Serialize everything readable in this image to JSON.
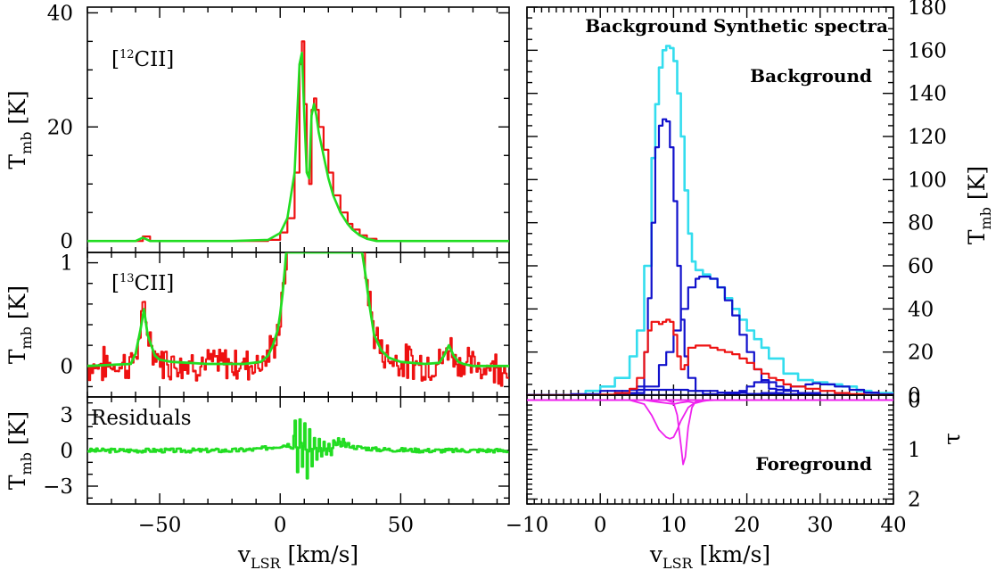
{
  "chart_data": [
    {
      "type": "line",
      "panel": "top-left",
      "annotation": "[12CII]",
      "annotation_main": "[",
      "annotation_sup": "12",
      "annotation_rest": "CII]",
      "xlim": [
        -80,
        95
      ],
      "ylim": [
        -2,
        41
      ],
      "yticks": [
        0,
        20,
        40
      ],
      "ylabel": "T",
      "ylabel_sub": "mb",
      "ylabel_unit": "[K]",
      "series": [
        {
          "name": "observed",
          "color": "#ee1111",
          "x": [
            -80,
            -60,
            -57,
            -54,
            -40,
            -20,
            -5,
            0,
            3,
            6,
            8,
            9,
            10,
            11,
            12,
            13,
            14,
            15,
            16,
            18,
            20,
            22,
            25,
            28,
            30,
            33,
            36,
            40,
            50,
            60,
            80,
            95
          ],
          "y": [
            0,
            0,
            0.8,
            0,
            0,
            0,
            0.2,
            1.5,
            4,
            12,
            31,
            35,
            24,
            12,
            10,
            23,
            25,
            23,
            20,
            16,
            12,
            8,
            5,
            3,
            2,
            1,
            0.4,
            0,
            0,
            0,
            0,
            0
          ]
        },
        {
          "name": "fit",
          "color": "#22dd22",
          "x": [
            -80,
            -60,
            -57,
            -54,
            -40,
            -20,
            -5,
            0,
            3,
            6,
            8,
            9,
            10,
            11,
            12,
            13,
            14,
            15,
            16,
            18,
            20,
            22,
            25,
            28,
            30,
            33,
            36,
            40,
            50,
            60,
            80,
            95
          ],
          "y": [
            0,
            0,
            0.6,
            0,
            0,
            0,
            0.2,
            1.4,
            4,
            12,
            31,
            33,
            22,
            12,
            11,
            22,
            24,
            22,
            19,
            15,
            11,
            8,
            5,
            3,
            2,
            1,
            0.4,
            0,
            0,
            0,
            0,
            0
          ]
        }
      ]
    },
    {
      "type": "line",
      "panel": "middle-left",
      "annotation": "[13CII]",
      "annotation_main": "[",
      "annotation_sup": "13",
      "annotation_rest": "CII]",
      "xlim": [
        -80,
        95
      ],
      "ylim": [
        -0.3,
        1.1
      ],
      "yticks": [
        0,
        1
      ],
      "ylabel": "T",
      "ylabel_sub": "mb",
      "ylabel_unit": "[K]",
      "series": [
        {
          "name": "fit",
          "color": "#22dd22",
          "x": [
            -80,
            -62,
            -60,
            -58,
            -56.5,
            -55,
            -52,
            -50,
            -45,
            -30,
            -15,
            -8,
            -5,
            -3,
            -1,
            0,
            1,
            2,
            2.5,
            34,
            35,
            37,
            39,
            42,
            45,
            50,
            60,
            66,
            68,
            70,
            72,
            74,
            76,
            80,
            95
          ],
          "y": [
            0,
            0.02,
            0.12,
            0.35,
            0.55,
            0.3,
            0.1,
            0.06,
            0.04,
            0.02,
            0.02,
            0.04,
            0.1,
            0.2,
            0.35,
            0.5,
            0.7,
            0.95,
            1.1,
            1.1,
            0.95,
            0.6,
            0.3,
            0.15,
            0.08,
            0.04,
            0.02,
            0.03,
            0.1,
            0.2,
            0.1,
            0.04,
            0.02,
            0,
            0
          ]
        }
      ]
    },
    {
      "type": "line",
      "panel": "bottom-left",
      "annotation": "Residuals",
      "xlim": [
        -80,
        95
      ],
      "ylim": [
        -4.5,
        4.5
      ],
      "yticks": [
        -3,
        0,
        3
      ],
      "xticks": [
        -50,
        0,
        50
      ],
      "xlabel": "v",
      "xlabel_sub": "LSR",
      "xlabel_unit": "[km/s]",
      "ylabel": "T",
      "ylabel_sub": "mb",
      "ylabel_unit": "[K]",
      "series": [
        {
          "name": "residuals",
          "color": "#22dd22",
          "x": [
            -80,
            -60,
            -40,
            -20,
            -10,
            0,
            3,
            5,
            6,
            7,
            8,
            9,
            10,
            11,
            12,
            13,
            14,
            15,
            16,
            17,
            18,
            19,
            20,
            21,
            22,
            23,
            24,
            25,
            26,
            27,
            28,
            30,
            35,
            40,
            60,
            80,
            95
          ],
          "y": [
            0,
            0,
            0,
            0,
            0.1,
            0.4,
            0.5,
            0.3,
            2.5,
            -1.8,
            2.6,
            -1.5,
            2.3,
            -2.2,
            1.8,
            -1.3,
            1.2,
            -0.8,
            0.9,
            -0.6,
            0.7,
            -0.4,
            0.5,
            -0.5,
            0.8,
            0.3,
            1,
            0.2,
            0.8,
            0.4,
            0.5,
            0.3,
            0.2,
            0.1,
            0,
            0,
            0
          ]
        }
      ]
    },
    {
      "type": "line",
      "panel": "top-right",
      "title": "Background Synthetic spectra",
      "annotation": "Background",
      "xlim": [
        -10,
        40
      ],
      "ylim": [
        0,
        180
      ],
      "yticks": [
        0,
        20,
        40,
        60,
        80,
        100,
        120,
        140,
        160,
        180
      ],
      "ylabel": "T",
      "ylabel_sub": "mb",
      "ylabel_unit": "[K]",
      "series": [
        {
          "name": "synthetic total",
          "color": "#33ddee",
          "x": [
            -10,
            -2,
            0,
            2,
            4,
            5,
            6,
            7,
            7.5,
            8,
            8.5,
            9,
            9.5,
            10,
            10.5,
            11,
            11.5,
            12,
            12.5,
            13,
            14,
            15,
            16,
            17,
            18,
            19,
            20,
            21,
            22,
            23,
            25,
            27,
            29,
            31,
            33,
            35,
            37,
            40
          ],
          "y": [
            0,
            2,
            4,
            8,
            18,
            30,
            60,
            110,
            135,
            152,
            160,
            162,
            161,
            155,
            140,
            120,
            95,
            75,
            62,
            58,
            56,
            54,
            50,
            45,
            40,
            35,
            30,
            26,
            22,
            17,
            10,
            7,
            6,
            5,
            4,
            2,
            1,
            0
          ]
        },
        {
          "name": "background comp 1",
          "color": "#1111cc",
          "x": [
            -10,
            0,
            2,
            4,
            5,
            6,
            6.5,
            7,
            7.5,
            8,
            8.5,
            9,
            9.5,
            10,
            10.5,
            11,
            11.5,
            12,
            13,
            14,
            16,
            20,
            40
          ],
          "y": [
            0,
            0,
            0,
            1,
            4,
            20,
            45,
            80,
            115,
            125,
            128,
            127,
            115,
            90,
            60,
            35,
            18,
            8,
            2,
            0.5,
            0,
            0,
            0
          ]
        },
        {
          "name": "background comp 2",
          "color": "#1111cc",
          "x": [
            -10,
            0,
            2,
            4,
            6,
            8,
            9,
            10,
            11,
            12,
            13,
            13.5,
            14,
            15,
            16,
            17,
            18,
            19,
            20,
            21,
            22,
            23,
            24,
            25,
            27,
            40
          ],
          "y": [
            0,
            0,
            0.2,
            1,
            4,
            14,
            20,
            30,
            40,
            50,
            54,
            55,
            55,
            54,
            50,
            44,
            37,
            28,
            20,
            12,
            6,
            3,
            1,
            0.5,
            0,
            0
          ]
        },
        {
          "name": "background comp 3",
          "color": "#1111cc",
          "x": [
            -10,
            15,
            17,
            19,
            20,
            21,
            22,
            23,
            24,
            25,
            27,
            30,
            40
          ],
          "y": [
            0,
            0,
            0.5,
            2,
            4,
            6,
            7,
            6,
            4,
            2,
            1,
            0,
            0
          ]
        },
        {
          "name": "background comp 4",
          "color": "#1111cc",
          "x": [
            -10,
            18,
            20,
            22,
            24,
            26,
            28,
            29,
            30,
            32,
            34,
            36,
            38,
            40
          ],
          "y": [
            0,
            0,
            0.5,
            1,
            2.5,
            4,
            5,
            5.5,
            5,
            4,
            2.5,
            1.2,
            0.4,
            0
          ]
        },
        {
          "name": "background comp 5",
          "color": "#1111cc",
          "x": [
            -10,
            -4,
            0,
            4,
            8,
            12,
            16,
            20,
            25,
            30,
            40
          ],
          "y": [
            0,
            0.5,
            2,
            2.5,
            2.5,
            2,
            1.2,
            0.6,
            0.2,
            0,
            0
          ]
        },
        {
          "name": "observed",
          "color": "#ee1111",
          "x": [
            -10,
            -5,
            0,
            2,
            4,
            5,
            6,
            6.5,
            7,
            7.5,
            8,
            8.5,
            9,
            9.5,
            10,
            10.5,
            11,
            11.5,
            12,
            13,
            14,
            15,
            16,
            17,
            18,
            19,
            20,
            21,
            22,
            23,
            24,
            25,
            26,
            28,
            30,
            32,
            34,
            36,
            40
          ],
          "y": [
            0,
            0,
            0.3,
            1,
            3,
            8,
            20,
            30,
            34,
            34,
            33,
            34,
            35,
            34,
            28,
            18,
            12,
            14,
            22,
            23,
            23,
            22,
            21,
            20,
            19,
            17,
            15,
            12,
            10,
            8,
            7,
            5,
            4,
            3,
            2,
            1,
            0.5,
            0,
            0
          ]
        }
      ]
    },
    {
      "type": "line",
      "panel": "bottom-right",
      "annotation": "Foreground",
      "xlim": [
        -10,
        40
      ],
      "ylim": [
        2.1,
        -0.1
      ],
      "yticks": [
        0,
        1,
        2
      ],
      "ytick_labels": [
        "0",
        "1",
        "2"
      ],
      "ylabel": "τ",
      "xticks": [
        -10,
        0,
        10,
        20,
        30,
        40
      ],
      "xlabel": "v",
      "xlabel_sub": "LSR",
      "xlabel_unit": "[km/s]",
      "series": [
        {
          "name": "foreground tau 1",
          "color": "#ee22ee",
          "x": [
            -10,
            4,
            6,
            7,
            8,
            9,
            9.5,
            10,
            10.5,
            11,
            12,
            13,
            14,
            16,
            40
          ],
          "y": [
            0,
            0,
            0.08,
            0.3,
            0.6,
            0.75,
            0.78,
            0.75,
            0.6,
            0.42,
            0.15,
            0.04,
            0.01,
            0,
            0
          ]
        },
        {
          "name": "foreground tau 2",
          "color": "#ee22ee",
          "x": [
            -10,
            9,
            10,
            10.5,
            11,
            11.3,
            11.6,
            12,
            12.5,
            13,
            14,
            40
          ],
          "y": [
            0,
            0,
            0.05,
            0.3,
            0.9,
            1.3,
            1.15,
            0.55,
            0.15,
            0.03,
            0,
            0
          ]
        },
        {
          "name": "foreground tau 3",
          "color": "#ee22ee",
          "x": [
            -10,
            6,
            7,
            8,
            9,
            10,
            11,
            12,
            13,
            14,
            15,
            40
          ],
          "y": [
            0,
            0,
            0.02,
            0.04,
            0.06,
            0.08,
            0.05,
            0.03,
            0.06,
            0.02,
            0,
            0
          ]
        }
      ]
    }
  ]
}
